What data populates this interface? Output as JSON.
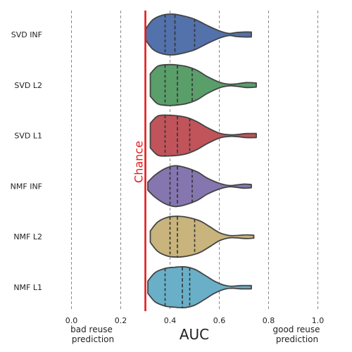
{
  "chart_data": {
    "type": "violin",
    "orientation": "horizontal",
    "title": "",
    "xlabel": "AUC",
    "ylabel": "",
    "xlim": [
      -0.07,
      1.05
    ],
    "xticks": [
      "0.0",
      "0.2",
      "0.4",
      "0.6",
      "0.8",
      "1.0"
    ],
    "xtick_values": [
      0.0,
      0.2,
      0.4,
      0.6,
      0.8,
      1.0
    ],
    "grid_x": true,
    "chance_line": {
      "x": 0.3,
      "label": "Chance",
      "color": "#e31a1c"
    },
    "annotations": {
      "left": [
        "bad reuse",
        "prediction"
      ],
      "right": [
        "good reuse",
        "prediction"
      ]
    },
    "series": [
      {
        "name": "SVD INF",
        "color": "#5371ab",
        "min": 0.3,
        "max": 0.73,
        "quartiles": [
          0.38,
          0.42,
          0.5
        ],
        "density": [
          [
            0.3,
            0.25
          ],
          [
            0.33,
            0.72
          ],
          [
            0.37,
            0.95
          ],
          [
            0.41,
            1.0
          ],
          [
            0.45,
            0.92
          ],
          [
            0.5,
            0.75
          ],
          [
            0.55,
            0.45
          ],
          [
            0.6,
            0.18
          ],
          [
            0.64,
            0.05
          ],
          [
            0.67,
            0.1
          ],
          [
            0.7,
            0.12
          ],
          [
            0.73,
            0.12
          ]
        ]
      },
      {
        "name": "SVD L2",
        "color": "#5a9e6a",
        "min": 0.32,
        "max": 0.75,
        "quartiles": [
          0.38,
          0.43,
          0.49
        ],
        "density": [
          [
            0.32,
            0.55
          ],
          [
            0.35,
            0.92
          ],
          [
            0.39,
            1.0
          ],
          [
            0.43,
            0.98
          ],
          [
            0.47,
            0.9
          ],
          [
            0.51,
            0.72
          ],
          [
            0.55,
            0.42
          ],
          [
            0.6,
            0.14
          ],
          [
            0.64,
            0.04
          ],
          [
            0.67,
            0.06
          ],
          [
            0.71,
            0.12
          ],
          [
            0.75,
            0.1
          ]
        ]
      },
      {
        "name": "SVD L1",
        "color": "#c0545a",
        "min": 0.32,
        "max": 0.75,
        "quartiles": [
          0.38,
          0.43,
          0.48
        ],
        "density": [
          [
            0.32,
            0.6
          ],
          [
            0.35,
            0.96
          ],
          [
            0.39,
            1.0
          ],
          [
            0.43,
            0.97
          ],
          [
            0.47,
            0.88
          ],
          [
            0.51,
            0.68
          ],
          [
            0.55,
            0.4
          ],
          [
            0.6,
            0.12
          ],
          [
            0.64,
            0.04
          ],
          [
            0.67,
            0.05
          ],
          [
            0.71,
            0.1
          ],
          [
            0.75,
            0.1
          ]
        ]
      },
      {
        "name": "NMF INF",
        "color": "#8576b0",
        "min": 0.31,
        "max": 0.73,
        "quartiles": [
          0.4,
          0.43,
          0.49
        ],
        "density": [
          [
            0.31,
            0.2
          ],
          [
            0.34,
            0.55
          ],
          [
            0.38,
            0.86
          ],
          [
            0.42,
            1.0
          ],
          [
            0.46,
            0.92
          ],
          [
            0.51,
            0.7
          ],
          [
            0.55,
            0.4
          ],
          [
            0.6,
            0.14
          ],
          [
            0.64,
            0.03
          ],
          [
            0.67,
            0.06
          ],
          [
            0.7,
            0.1
          ],
          [
            0.73,
            0.08
          ]
        ]
      },
      {
        "name": "NMF L2",
        "color": "#c8b47c",
        "min": 0.32,
        "max": 0.74,
        "quartiles": [
          0.4,
          0.43,
          0.5
        ],
        "density": [
          [
            0.32,
            0.28
          ],
          [
            0.35,
            0.72
          ],
          [
            0.39,
            0.95
          ],
          [
            0.43,
            1.0
          ],
          [
            0.47,
            0.95
          ],
          [
            0.52,
            0.78
          ],
          [
            0.56,
            0.5
          ],
          [
            0.6,
            0.2
          ],
          [
            0.64,
            0.06
          ],
          [
            0.67,
            0.06
          ],
          [
            0.71,
            0.09
          ],
          [
            0.74,
            0.07
          ]
        ]
      },
      {
        "name": "NMF L1",
        "color": "#6aafc8",
        "min": 0.31,
        "max": 0.73,
        "quartiles": [
          0.38,
          0.45,
          0.48
        ],
        "density": [
          [
            0.31,
            0.3
          ],
          [
            0.34,
            0.72
          ],
          [
            0.38,
            0.92
          ],
          [
            0.42,
            0.98
          ],
          [
            0.46,
            1.0
          ],
          [
            0.5,
            0.88
          ],
          [
            0.54,
            0.6
          ],
          [
            0.58,
            0.3
          ],
          [
            0.62,
            0.1
          ],
          [
            0.65,
            0.05
          ],
          [
            0.69,
            0.08
          ],
          [
            0.73,
            0.08
          ]
        ]
      }
    ]
  }
}
